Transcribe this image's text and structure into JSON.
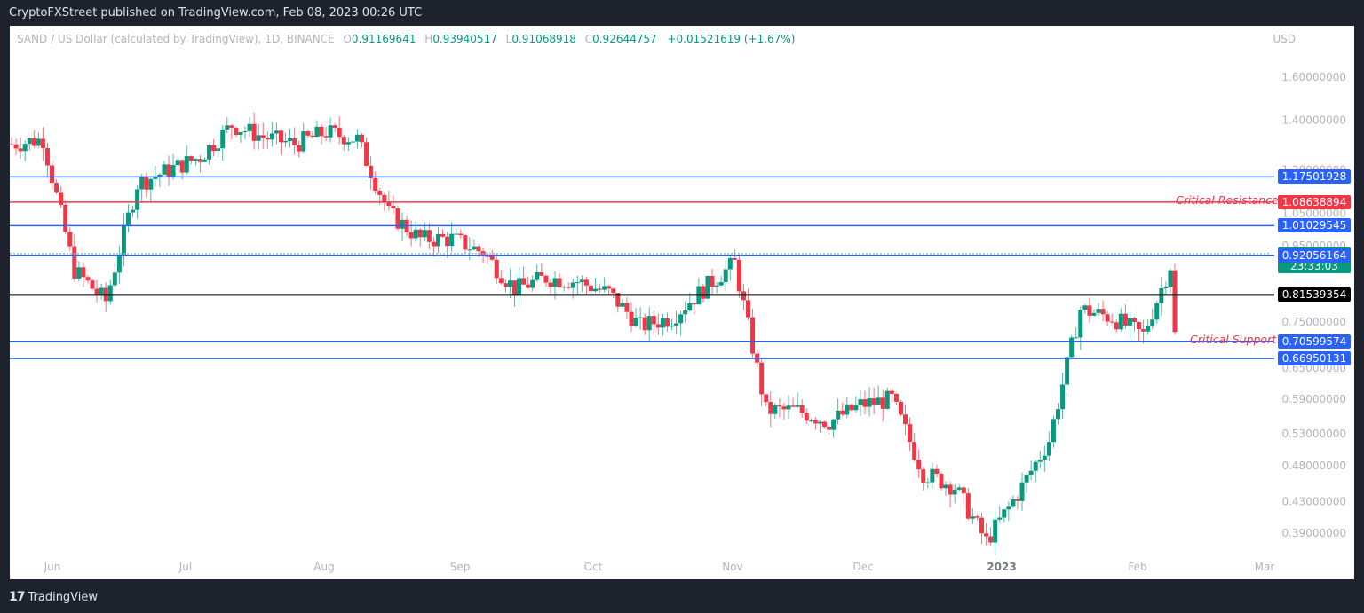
{
  "header": {
    "published": "CryptoFXStreet published on TradingView.com, Feb 08, 2023 00:26 UTC"
  },
  "legend": {
    "symbol": "SAND / US Dollar (calculated by TradingView), 1D, BINANCE",
    "open_label": "O",
    "open": "0.91169641",
    "high_label": "H",
    "high": "0.93940517",
    "low_label": "L",
    "low": "0.91068918",
    "close_label": "C",
    "close": "0.92644757",
    "change": "+0.01521619 (+1.67%)"
  },
  "axis": {
    "currency": "USD"
  },
  "footer": {
    "brand": "TradingView",
    "logo": "tradingview-logo-icon"
  },
  "colors": {
    "up": "#089981",
    "down": "#f23645",
    "level_blue": "#2962ff",
    "level_red": "#f23645",
    "level_black": "#000000"
  },
  "chart_data": {
    "type": "candlestick",
    "title": "SAND / US Dollar (calculated by TradingView), 1D, BINANCE",
    "ylabel": "USD",
    "yscale": "log",
    "y_ticks": [
      "1.60000000",
      "1.40000000",
      "1.20000000",
      "1.05000000",
      "0.95000000",
      "0.75000000",
      "0.65000000",
      "0.59000000",
      "0.53000000",
      "0.48000000",
      "0.43000000",
      "0.39000000"
    ],
    "x_ticks": [
      "Jun",
      "Jul",
      "Aug",
      "Sep",
      "Oct",
      "Nov",
      "Dec",
      "2023",
      "Feb",
      "Mar"
    ],
    "ylim": [
      0.37,
      1.75
    ],
    "levels": [
      {
        "price": "1.17501928",
        "color": "#2962ff",
        "label": ""
      },
      {
        "price": "1.08638894",
        "color": "#f23645",
        "label": "Critical Resistance"
      },
      {
        "price": "1.01029545",
        "color": "#2962ff",
        "label": ""
      },
      {
        "price": "0.92644757",
        "color": "#089981",
        "label": "last price",
        "countdown": "23:33:03"
      },
      {
        "price": "0.92056164",
        "color": "#2962ff",
        "label": ""
      },
      {
        "price": "0.81539354",
        "color": "#000000",
        "label": ""
      },
      {
        "price": "0.70599574",
        "color": "#2962ff",
        "label": "Critical Support"
      },
      {
        "price": "0.66950131",
        "color": "#2962ff",
        "label": ""
      }
    ],
    "ohlc_approx_weekly_closes": {
      "dates": [
        "May-28",
        "Jun-04",
        "Jun-11",
        "Jun-18",
        "Jun-25",
        "Jul-02",
        "Jul-09",
        "Jul-16",
        "Jul-23",
        "Jul-30",
        "Aug-06",
        "Aug-13",
        "Aug-20",
        "Aug-27",
        "Sep-03",
        "Sep-10",
        "Sep-17",
        "Sep-24",
        "Oct-01",
        "Oct-08",
        "Oct-15",
        "Oct-22",
        "Oct-29",
        "Nov-05",
        "Nov-12",
        "Nov-19",
        "Nov-26",
        "Dec-03",
        "Dec-10",
        "Dec-17",
        "Dec-24",
        "Dec-31",
        "Jan-07",
        "Jan-14",
        "Jan-21",
        "Jan-28",
        "Feb-04",
        "Feb-07"
      ],
      "values": [
        1.3,
        1.32,
        0.88,
        0.8,
        1.15,
        1.2,
        1.25,
        1.38,
        1.33,
        1.3,
        1.35,
        1.32,
        1.05,
        0.97,
        0.97,
        0.93,
        0.83,
        0.86,
        0.85,
        0.82,
        0.74,
        0.76,
        0.83,
        0.9,
        0.57,
        0.57,
        0.55,
        0.58,
        0.59,
        0.47,
        0.45,
        0.38,
        0.44,
        0.52,
        0.78,
        0.76,
        0.72,
        0.926
      ]
    }
  }
}
